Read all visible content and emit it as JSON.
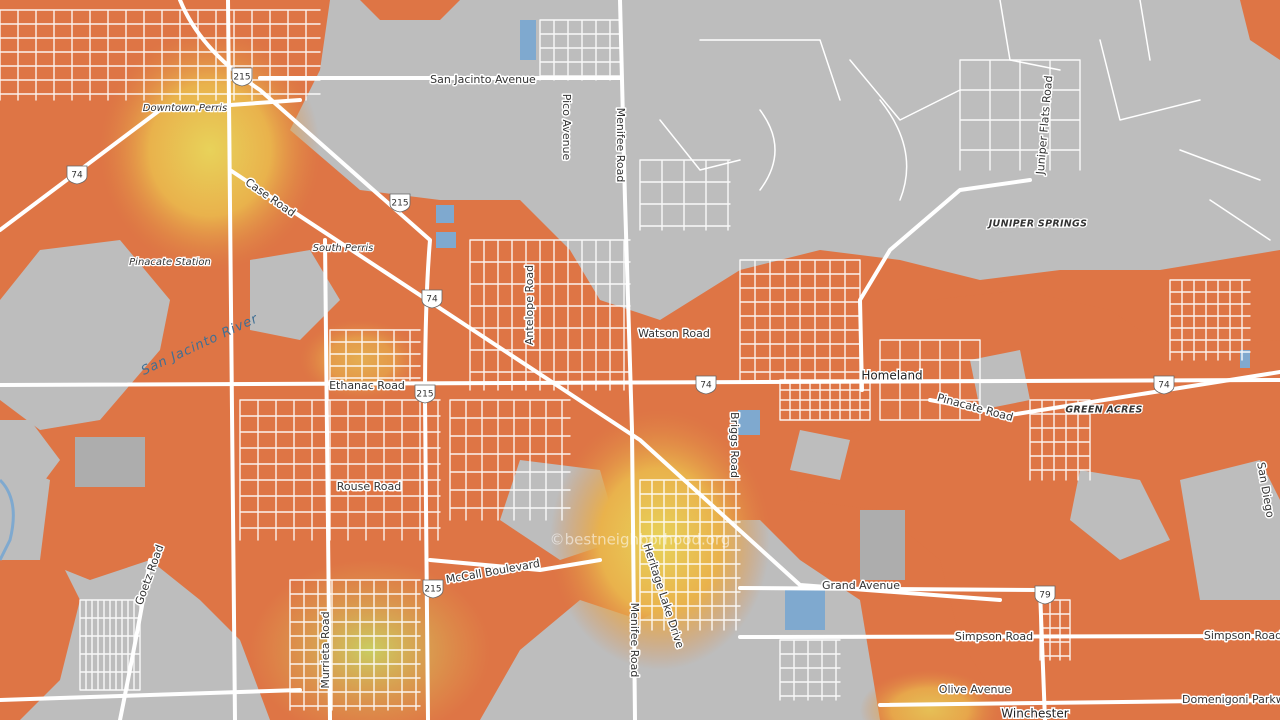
{
  "map": {
    "roads": [
      "San Jacinto Avenue",
      "Pico Avenue",
      "Menifee Road",
      "Juniper Flats Road",
      "Case Road",
      "Antelope Road",
      "Watson Road",
      "Ethanac Road",
      "Briggs Road",
      "Pinacate Road",
      "Rouse Road",
      "Goetz Road",
      "McCall Boulevard",
      "Heritage Lake Drive",
      "Menifee Road",
      "Grand Avenue",
      "Simpson Road",
      "Simpson Road",
      "Murrieta Road",
      "Olive Avenue",
      "Domenigoni Parkway",
      "San Diego"
    ],
    "places": [
      "Downtown Perris",
      "South Perris",
      "Pinacate Station"
    ],
    "towns": [
      "Homeland",
      "Winchester"
    ],
    "districts": [
      "JUNIPER SPRINGS",
      "GREEN ACRES"
    ],
    "water": [
      "San Jacinto River"
    ],
    "shields": [
      "215",
      "74",
      "215",
      "74",
      "215",
      "74",
      "74",
      "215",
      "79"
    ],
    "watermark": "©bestneighborhood.org"
  }
}
